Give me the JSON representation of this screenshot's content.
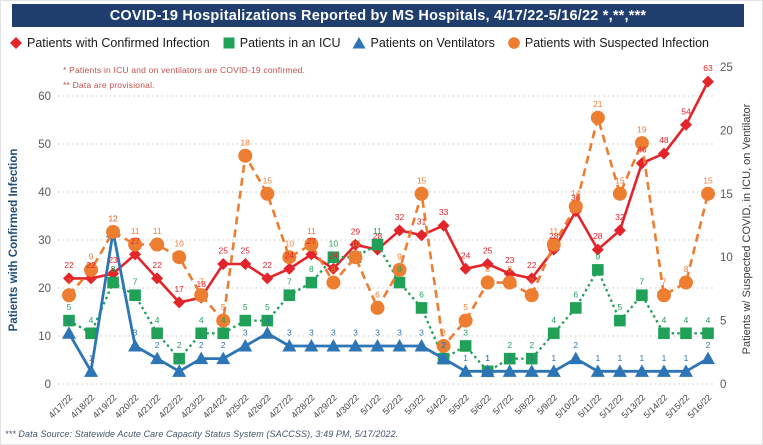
{
  "title": "COVID-19 Hospitalizations Reported by MS Hospitals, 4/17/22-5/16/22 *,**,***",
  "title_bar_color": "#1f3d6d",
  "legend": [
    {
      "label": "Patients with Confirmed Infection",
      "marker": "diamond",
      "color": "#e3242b"
    },
    {
      "label": "Patients in an ICU",
      "marker": "square",
      "color": "#21a158"
    },
    {
      "label": "Patients on Ventilators",
      "marker": "triangle",
      "color": "#2e75b6"
    },
    {
      "label": "Patients with Suspected Infection",
      "marker": "circle",
      "color": "#ed7d31"
    }
  ],
  "notes": {
    "line1": "* Patients in ICU and on ventilators are COVID-19 confirmed.",
    "line2": "** Data are provisional.",
    "color": "#c0504d"
  },
  "footer": "*** Data Source: Statewide Acute Care Capacity Status System (SACCSS), 3:49 PM, 5/17/2022.",
  "chart_data": {
    "type": "line",
    "categories": [
      "4/17/22",
      "4/18/22",
      "4/19/22",
      "4/20/22",
      "4/21/22",
      "4/22/22",
      "4/23/22",
      "4/24/22",
      "4/25/22",
      "4/26/22",
      "4/27/22",
      "4/28/22",
      "4/29/22",
      "4/30/22",
      "5/1/22",
      "5/2/22",
      "5/3/22",
      "5/4/22",
      "5/5/22",
      "5/6/22",
      "5/7/22",
      "5/8/22",
      "5/9/22",
      "5/10/22",
      "5/11/22",
      "5/12/22",
      "5/13/22",
      "5/14/22",
      "5/15/22",
      "5/16/22"
    ],
    "series": [
      {
        "name": "Patients with Confirmed Infection",
        "axis": "left",
        "color": "#e3242b",
        "marker": "diamond",
        "line": "solid",
        "values": [
          22,
          22,
          23,
          27,
          22,
          17,
          18,
          25,
          25,
          22,
          24,
          27,
          24,
          29,
          28,
          32,
          31,
          33,
          24,
          25,
          23,
          22,
          28,
          36,
          28,
          32,
          46,
          48,
          54,
          63
        ]
      },
      {
        "name": "Patients in an ICU",
        "axis": "right",
        "color": "#21a158",
        "marker": "square",
        "line": "dotted",
        "values": [
          5,
          4,
          8,
          7,
          4,
          2,
          4,
          4,
          5,
          5,
          7,
          8,
          10,
          10,
          11,
          8,
          6,
          2,
          3,
          1,
          2,
          2,
          4,
          6,
          9,
          5,
          7,
          4,
          4,
          4
        ]
      },
      {
        "name": "Patients on Ventilators",
        "axis": "right",
        "color": "#2e75b6",
        "marker": "triangle",
        "line": "solid",
        "values": [
          4,
          1,
          12,
          3,
          2,
          1,
          2,
          2,
          3,
          4,
          3,
          3,
          3,
          3,
          3,
          3,
          3,
          2,
          1,
          1,
          1,
          1,
          1,
          2,
          1,
          1,
          1,
          1,
          1,
          2
        ]
      },
      {
        "name": "Patients with Suspected Infection",
        "axis": "right",
        "color": "#ed7d31",
        "marker": "circle",
        "line": "dashed",
        "values": [
          7,
          9,
          12,
          11,
          11,
          10,
          7,
          5,
          18,
          15,
          10,
          11,
          8,
          10,
          6,
          9,
          15,
          3,
          5,
          8,
          8,
          7,
          11,
          14,
          21,
          15,
          19,
          7,
          8,
          15
        ]
      }
    ],
    "left_axis": {
      "title": "Patients with Confirmed Infection",
      "min": 0,
      "max": 60,
      "step": 10,
      "tick_color": "#595959",
      "title_color": "#1f4e79"
    },
    "right_axis": {
      "title": "Patients w/ Suspected COVID, in ICU, on Ventilator",
      "min": 0,
      "max": 25,
      "step": 5,
      "tick_color": "#595959",
      "title_color": "#3b3b3b"
    },
    "grid": "horizontal-dotted",
    "grid_color": "#c9c9c9",
    "legend_position": "top"
  }
}
